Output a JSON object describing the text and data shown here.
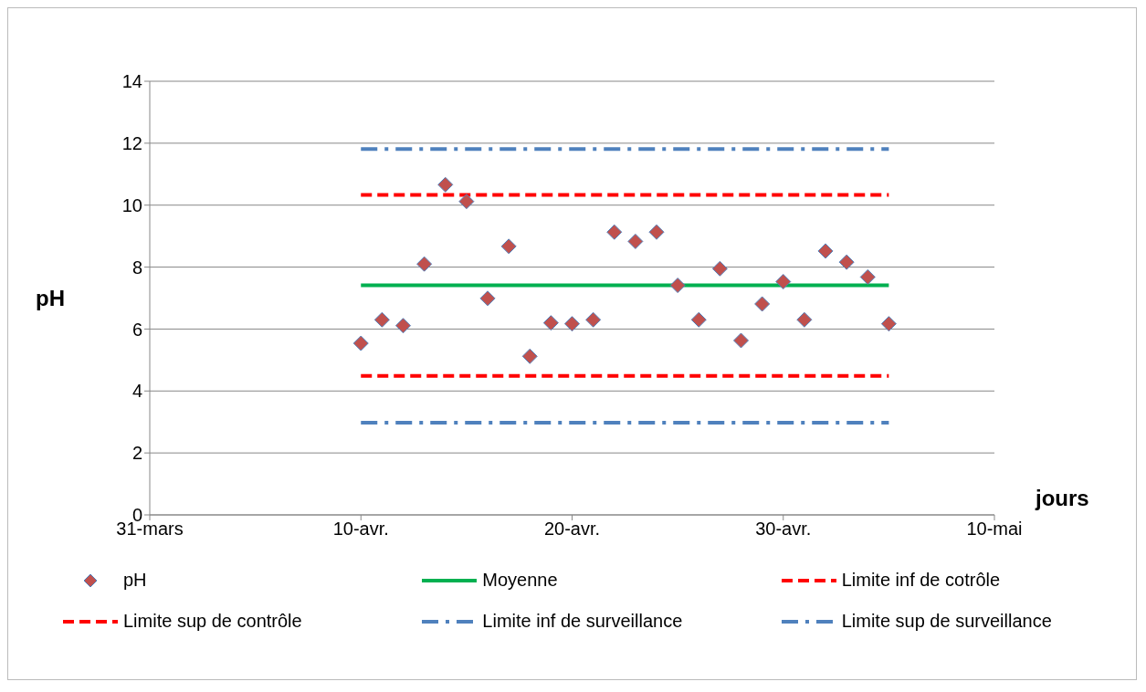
{
  "chart_data": {
    "type": "scatter",
    "ylabel": "pH",
    "xlabel": "jours",
    "xlim": [
      "--03-31",
      "--05-10"
    ],
    "xticks": [
      {
        "value": "--03-31",
        "label": "31-mars"
      },
      {
        "value": "--04-10",
        "label": "10-avr."
      },
      {
        "value": "--04-20",
        "label": "20-avr."
      },
      {
        "value": "--04-30",
        "label": "30-avr."
      },
      {
        "value": "--05-10",
        "label": "10-mai"
      }
    ],
    "ylim": [
      0,
      14
    ],
    "yticks": [
      0,
      2,
      4,
      6,
      8,
      10,
      12,
      14
    ],
    "grid": "y",
    "legend": "bottom",
    "series": [
      {
        "name": "pH",
        "marker": "diamond",
        "color": "#c0504d",
        "x": [
          "--04-10",
          "--04-11",
          "--04-12",
          "--04-13",
          "--04-14",
          "--04-15",
          "--04-16",
          "--04-17",
          "--04-18",
          "--04-19",
          "--04-20",
          "--04-21",
          "--04-22",
          "--04-23",
          "--04-24",
          "--04-25",
          "--04-26",
          "--04-27",
          "--04-28",
          "--04-29",
          "--04-30",
          "--05-01",
          "--05-02",
          "--05-03",
          "--05-04",
          "--05-05"
        ],
        "values": [
          5.54,
          6.3,
          6.11,
          8.1,
          10.66,
          10.12,
          6.99,
          8.67,
          5.12,
          6.2,
          6.17,
          6.3,
          9.13,
          8.83,
          9.13,
          7.41,
          6.3,
          7.95,
          5.63,
          6.81,
          7.53,
          6.3,
          8.52,
          8.16,
          7.68,
          6.17
        ]
      },
      {
        "name": "Moyenne",
        "type": "line",
        "line_style": "solid",
        "color": "#00b050",
        "x": [
          "--04-10",
          "--05-05"
        ],
        "values": [
          7.41,
          7.41
        ]
      },
      {
        "name": "Limite inf de cotrôle",
        "type": "line",
        "line_style": "dashed",
        "color": "#ff0000",
        "x": [
          "--04-10",
          "--05-05"
        ],
        "values": [
          4.49,
          4.49
        ]
      },
      {
        "name": "Limite sup de contrôle",
        "type": "line",
        "line_style": "dashed",
        "color": "#ff0000",
        "x": [
          "--04-10",
          "--05-05"
        ],
        "values": [
          10.33,
          10.33
        ]
      },
      {
        "name": "Limite inf de surveillance",
        "type": "line",
        "line_style": "dashdot",
        "color": "#4f81bd",
        "x": [
          "--04-10",
          "--05-05"
        ],
        "values": [
          2.98,
          2.98
        ]
      },
      {
        "name": "Limite sup de surveillance",
        "type": "line",
        "line_style": "dashdot",
        "color": "#4f81bd",
        "x": [
          "--04-10",
          "--05-05"
        ],
        "values": [
          11.81,
          11.81
        ]
      }
    ]
  }
}
